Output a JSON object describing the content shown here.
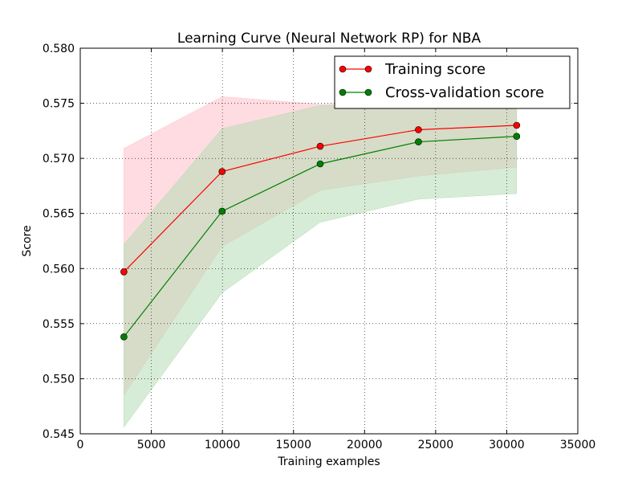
{
  "chart_data": {
    "type": "line",
    "title": "Learning Curve (Neural Network RP) for NBA",
    "xlabel": "Training examples",
    "ylabel": "Score",
    "xlim": [
      0,
      35000
    ],
    "ylim": [
      0.545,
      0.58
    ],
    "x_ticks": [
      0,
      5000,
      10000,
      15000,
      20000,
      25000,
      30000,
      35000
    ],
    "x_tick_labels": [
      "0",
      "5000",
      "10000",
      "15000",
      "20000",
      "25000",
      "30000",
      "35000"
    ],
    "y_ticks": [
      0.545,
      0.55,
      0.555,
      0.56,
      0.565,
      0.57,
      0.575,
      0.58
    ],
    "y_tick_labels": [
      "0.545",
      "0.550",
      "0.555",
      "0.560",
      "0.565",
      "0.570",
      "0.575",
      "0.580"
    ],
    "grid": true,
    "legend_position": "top-right",
    "x": [
      3070,
      9980,
      16880,
      23790,
      30700
    ],
    "series": [
      {
        "name": "Training score",
        "values": [
          0.5597,
          0.5688,
          0.5711,
          0.5726,
          0.573
        ],
        "band_upper": [
          0.5709,
          0.5756,
          0.5749,
          0.5752,
          0.5746
        ],
        "band_lower": [
          0.5485,
          0.562,
          0.5671,
          0.5684,
          0.5692
        ],
        "color": "#ff0000",
        "band_color": "#ffc0c8"
      },
      {
        "name": "Cross-validation score",
        "values": [
          0.5538,
          0.5652,
          0.5695,
          0.5715,
          0.572
        ],
        "band_upper": [
          0.5622,
          0.5727,
          0.5748,
          0.5748,
          0.5748
        ],
        "band_lower": [
          0.5456,
          0.5578,
          0.5642,
          0.5663,
          0.5668
        ],
        "color": "#008000",
        "band_color": "#b4dcb4"
      }
    ]
  }
}
